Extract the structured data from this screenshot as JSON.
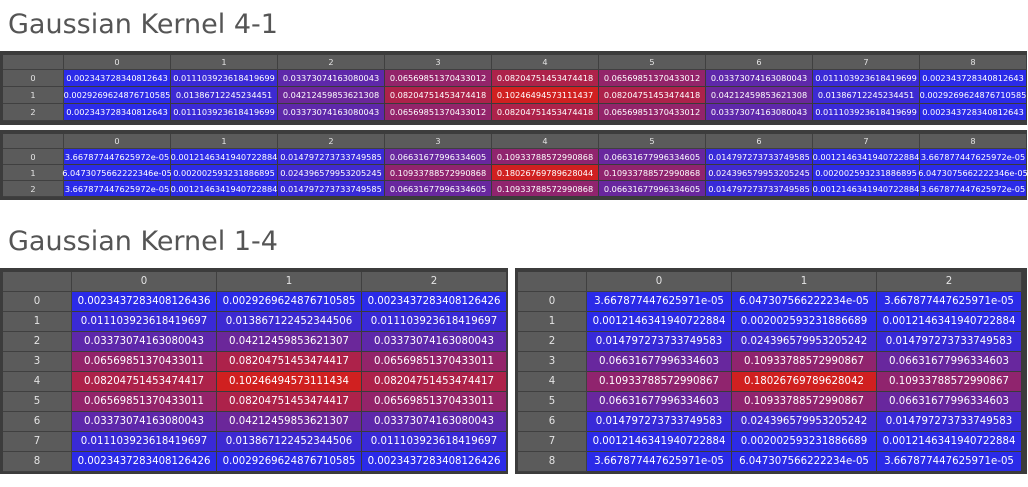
{
  "titles": {
    "top": "Gaussian Kernel 4-1",
    "bottom": "Gaussian Kernel 1-4"
  },
  "colors": {
    "low": "#2b2be8",
    "high": "#d02020",
    "header_bg": "#5b5b5b",
    "panel_bg": "#3c3c3c"
  },
  "tables": {
    "t41a": {
      "cols": [
        "0",
        "1",
        "2",
        "3",
        "4",
        "5",
        "6",
        "7",
        "8"
      ],
      "rows": [
        "0",
        "1",
        "2"
      ],
      "cells": [
        [
          "0.002343728340812643",
          "0.011103923618419699",
          "0.03373074163080043",
          "0.06569851370433012",
          "0.08204751453474418",
          "0.06569851370433012",
          "0.03373074163080043",
          "0.011103923618419699",
          "0.002343728340812643"
        ],
        [
          "0.0029269624876710585",
          "0.01386712245234451",
          "0.04212459853621308",
          "0.08204751453474418",
          "0.10246494573111437",
          "0.08204751453474418",
          "0.04212459853621308",
          "0.01386712245234451",
          "0.0029269624876710585"
        ],
        [
          "0.002343728340812643",
          "0.011103923618419699",
          "0.03373074163080043",
          "0.06569851370433012",
          "0.08204751453474418",
          "0.06569851370433012",
          "0.03373074163080043",
          "0.011103923618419699",
          "0.002343728340812643"
        ]
      ],
      "levels": [
        [
          0.0,
          0.09,
          0.31,
          0.63,
          0.79,
          0.63,
          0.31,
          0.09,
          0.0
        ],
        [
          0.005,
          0.11,
          0.39,
          0.79,
          1.0,
          0.79,
          0.39,
          0.11,
          0.005
        ],
        [
          0.0,
          0.09,
          0.31,
          0.63,
          0.79,
          0.63,
          0.31,
          0.09,
          0.0
        ]
      ]
    },
    "t41b": {
      "cols": [
        "0",
        "1",
        "2",
        "3",
        "4",
        "5",
        "6",
        "7",
        "8"
      ],
      "rows": [
        "0",
        "1",
        "2"
      ],
      "cells": [
        [
          "3.667877447625972e-05",
          "0.0012146341940722884",
          "0.014797273733749585",
          "0.06631677996334605",
          "0.10933788572990868",
          "0.06631677996334605",
          "0.014797273733749585",
          "0.0012146341940722884",
          "3.667877447625972e-05"
        ],
        [
          "6.0473075662222346e-05",
          "0.002002593231886895",
          "0.024396579953205245",
          "0.10933788572990868",
          "0.18026769789628044",
          "0.10933788572990868",
          "0.024396579953205245",
          "0.002002593231886895",
          "6.0473075662222346e-05"
        ],
        [
          "3.667877447625972e-05",
          "0.0012146341940722884",
          "0.014797273733749585",
          "0.06631677996334605",
          "0.10933788572990868",
          "0.06631677996334605",
          "0.014797273733749585",
          "0.0012146341940722884",
          "3.667877447625972e-05"
        ]
      ],
      "levels": [
        [
          0.0,
          0.007,
          0.08,
          0.37,
          0.61,
          0.37,
          0.08,
          0.007,
          0.0
        ],
        [
          0.0,
          0.011,
          0.135,
          0.61,
          1.0,
          0.61,
          0.135,
          0.011,
          0.0
        ],
        [
          0.0,
          0.007,
          0.08,
          0.37,
          0.61,
          0.37,
          0.08,
          0.007,
          0.0
        ]
      ]
    },
    "t14a": {
      "cols": [
        "0",
        "1",
        "2"
      ],
      "rows": [
        "0",
        "1",
        "2",
        "3",
        "4",
        "5",
        "6",
        "7",
        "8"
      ],
      "cells": [
        [
          "0.0023437283408126436",
          "0.0029269624876710585",
          "0.0023437283408126426"
        ],
        [
          "0.011103923618419697",
          "0.013867122452344506",
          "0.011103923618419697"
        ],
        [
          "0.03373074163080043",
          "0.04212459853621307",
          "0.03373074163080043"
        ],
        [
          "0.06569851370433011",
          "0.08204751453474417",
          "0.06569851370433011"
        ],
        [
          "0.08204751453474417",
          "0.10246494573111434",
          "0.08204751453474417"
        ],
        [
          "0.06569851370433011",
          "0.08204751453474417",
          "0.06569851370433011"
        ],
        [
          "0.03373074163080043",
          "0.04212459853621307",
          "0.03373074163080043"
        ],
        [
          "0.011103923618419697",
          "0.013867122452344506",
          "0.011103923618419697"
        ],
        [
          "0.0023437283408126426",
          "0.0029269624876710585",
          "0.0023437283408126426"
        ]
      ],
      "levels": [
        [
          0.0,
          0.005,
          0.0
        ],
        [
          0.09,
          0.11,
          0.09
        ],
        [
          0.31,
          0.39,
          0.31
        ],
        [
          0.63,
          0.79,
          0.63
        ],
        [
          0.79,
          1.0,
          0.79
        ],
        [
          0.63,
          0.79,
          0.63
        ],
        [
          0.31,
          0.39,
          0.31
        ],
        [
          0.09,
          0.11,
          0.09
        ],
        [
          0.0,
          0.005,
          0.0
        ]
      ]
    },
    "t14b": {
      "cols": [
        "0",
        "1",
        "2"
      ],
      "rows": [
        "0",
        "1",
        "2",
        "3",
        "4",
        "5",
        "6",
        "7",
        "8"
      ],
      "cells": [
        [
          "3.667877447625971e-05",
          "6.047307566222234e-05",
          "3.667877447625971e-05"
        ],
        [
          "0.0012146341940722884",
          "0.002002593231886689",
          "0.0012146341940722884"
        ],
        [
          "0.014797273733749583",
          "0.024396579953205242",
          "0.014797273733749583"
        ],
        [
          "0.06631677996334603",
          "0.10933788572990867",
          "0.06631677996334603"
        ],
        [
          "0.10933788572990867",
          "0.18026769789628042",
          "0.10933788572990867"
        ],
        [
          "0.06631677996334603",
          "0.10933788572990867",
          "0.06631677996334603"
        ],
        [
          "0.014797273733749583",
          "0.024396579953205242",
          "0.014797273733749583"
        ],
        [
          "0.0012146341940722884",
          "0.002002593231886689",
          "0.0012146341940722884"
        ],
        [
          "3.667877447625971e-05",
          "6.047307566222234e-05",
          "3.667877447625971e-05"
        ]
      ],
      "levels": [
        [
          0.0,
          0.0,
          0.0
        ],
        [
          0.007,
          0.011,
          0.007
        ],
        [
          0.08,
          0.135,
          0.08
        ],
        [
          0.37,
          0.61,
          0.37
        ],
        [
          0.61,
          1.0,
          0.61
        ],
        [
          0.37,
          0.61,
          0.37
        ],
        [
          0.08,
          0.135,
          0.08
        ],
        [
          0.007,
          0.011,
          0.007
        ],
        [
          0.0,
          0.0,
          0.0
        ]
      ]
    }
  }
}
